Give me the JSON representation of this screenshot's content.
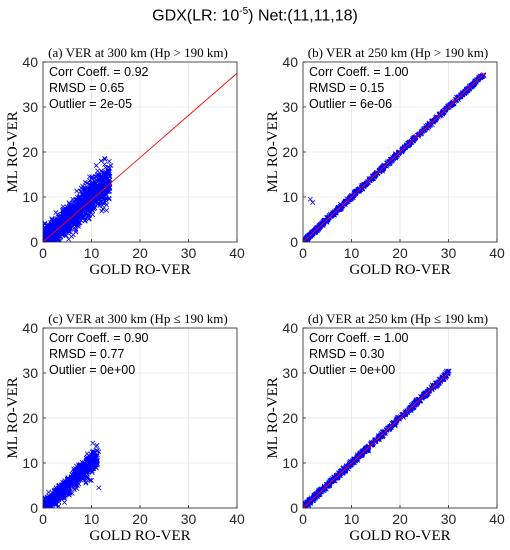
{
  "figure": {
    "title_prefix": "GDX(LR: 10",
    "title_exponent": "-5",
    "title_suffix": ") Net:(11,11,18)"
  },
  "colors": {
    "points": "#0000ff",
    "identity_line": "#ff0000",
    "grid": "#e6e6e6",
    "axes": "#262626"
  },
  "chart_data": [
    {
      "type": "scatter",
      "panel_title": "(a) VER at 300 km (Hp > 190 km)",
      "xlabel": "GOLD RO-VER",
      "ylabel": "ML RO-VER",
      "xlim": [
        0,
        40
      ],
      "ylim": [
        0,
        40
      ],
      "xticks": [
        0,
        10,
        20,
        30,
        40
      ],
      "yticks": [
        0,
        10,
        20,
        30,
        40
      ],
      "grid": true,
      "stats": [
        "Corr Coeff. = 0.92",
        "RMSD = 0.65",
        "Outlier = 2e-05"
      ],
      "identity_line": [
        [
          0,
          0
        ],
        [
          40,
          37.5
        ]
      ],
      "cloud": {
        "x_max": 13.5,
        "spread": 2.2,
        "spread_growth": 0.08,
        "count": 1500,
        "extra": [
          [
            14,
            17
          ],
          [
            12,
            18
          ],
          [
            13,
            15.5
          ],
          [
            11,
            17
          ]
        ]
      }
    },
    {
      "type": "scatter",
      "panel_title": "(b) VER at 250 km (Hp > 190 km)",
      "xlabel": "GOLD RO-VER",
      "ylabel": "ML RO-VER",
      "xlim": [
        0,
        40
      ],
      "ylim": [
        0,
        40
      ],
      "xticks": [
        0,
        10,
        20,
        30,
        40
      ],
      "yticks": [
        0,
        10,
        20,
        30,
        40
      ],
      "grid": true,
      "stats": [
        "Corr Coeff. = 1.00",
        "RMSD = 0.15",
        "Outlier = 6e-06"
      ],
      "identity_line": [
        [
          0,
          0
        ],
        [
          37.5,
          37.5
        ]
      ],
      "cloud": {
        "x_max": 37,
        "spread": 0.35,
        "spread_growth": 0.0,
        "count": 900,
        "extra": [
          [
            1.5,
            9.5
          ],
          [
            2,
            8.8
          ]
        ]
      }
    },
    {
      "type": "scatter",
      "panel_title": "(c) VER at 300 km (Hp ≤ 190 km)",
      "xlabel": "GOLD RO-VER",
      "ylabel": "ML RO-VER",
      "xlim": [
        0,
        40
      ],
      "ylim": [
        0,
        40
      ],
      "xticks": [
        0,
        10,
        20,
        30,
        40
      ],
      "yticks": [
        0,
        10,
        20,
        30,
        40
      ],
      "grid": true,
      "stats": [
        "Corr Coeff. = 0.90",
        "RMSD = 0.77",
        "Outlier = 0e+00"
      ],
      "identity_line": null,
      "cloud": {
        "x_max": 11,
        "spread": 1.1,
        "spread_growth": 0.1,
        "count": 900,
        "extra": [
          [
            11.5,
            12.5
          ],
          [
            10.5,
            11.5
          ],
          [
            11.5,
            4.5
          ]
        ]
      }
    },
    {
      "type": "scatter",
      "panel_title": "(d) VER at 250 km (Hp ≤ 190 km)",
      "xlabel": "GOLD RO-VER",
      "ylabel": "ML RO-VER",
      "xlim": [
        0,
        40
      ],
      "ylim": [
        0,
        40
      ],
      "xticks": [
        0,
        10,
        20,
        30,
        40
      ],
      "yticks": [
        0,
        10,
        20,
        30,
        40
      ],
      "grid": true,
      "stats": [
        "Corr Coeff. = 1.00",
        "RMSD = 0.30",
        "Outlier = 0e+00"
      ],
      "identity_line": [
        [
          0,
          0
        ],
        [
          30,
          30
        ]
      ],
      "cloud": {
        "x_max": 30,
        "spread": 0.45,
        "spread_growth": 0.0,
        "count": 800,
        "extra": []
      }
    }
  ]
}
